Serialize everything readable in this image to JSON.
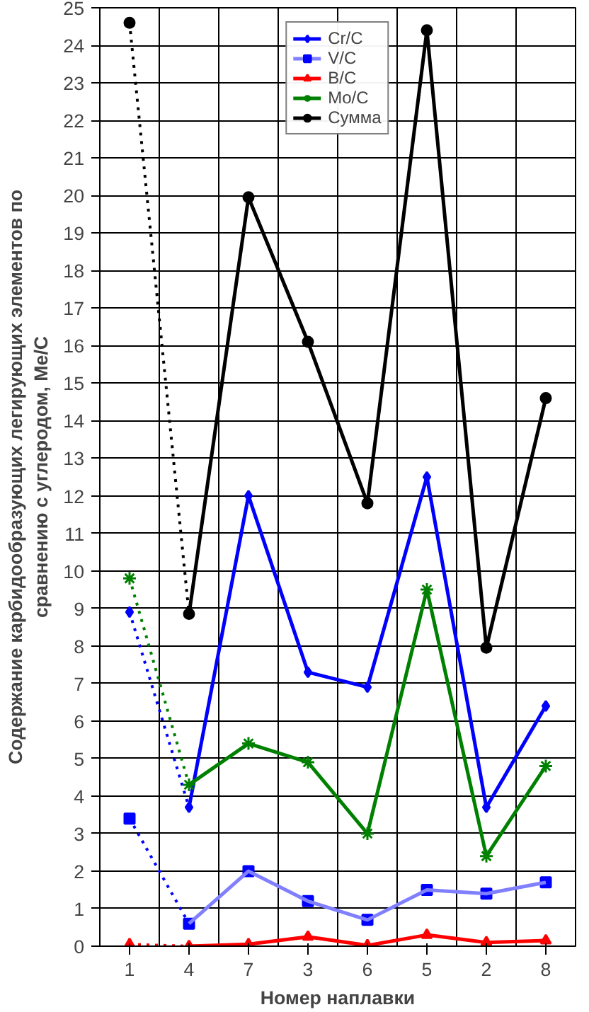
{
  "chart_data": {
    "type": "line",
    "xlabel": "Номер наплавки",
    "ylabel": "Содержание карбидообразующих легирующих элементов по\nсравнению с углеродом, Ме/С",
    "categories": [
      "1",
      "4",
      "7",
      "3",
      "6",
      "5",
      "2",
      "8"
    ],
    "ylim": [
      0,
      25
    ],
    "yticks": [
      0,
      1,
      2,
      3,
      4,
      5,
      6,
      7,
      8,
      9,
      10,
      11,
      12,
      13,
      14,
      15,
      16,
      17,
      18,
      19,
      20,
      21,
      22,
      23,
      24,
      25
    ],
    "grid": true,
    "legend": "top",
    "series": [
      {
        "name": "Cr/C",
        "type": "scatter",
        "marker": "diamond",
        "color": "#0000ff",
        "values": [
          8.9,
          3.7,
          12.0,
          7.3,
          6.9,
          12.5,
          3.7,
          6.4
        ]
      },
      {
        "type": "line",
        "line_style": "dotted",
        "color": "#0000ff",
        "x": [
          "1",
          "4"
        ],
        "values": [
          8.9,
          3.7
        ]
      },
      {
        "line_style": "solid",
        "color": "#0000ff",
        "x": [
          "4",
          "7",
          "3",
          "6",
          "5",
          "2",
          "8"
        ],
        "values": [
          3.7,
          12.0,
          7.3,
          6.9,
          12.5,
          3.7,
          6.4
        ]
      },
      {
        "name": "V/C",
        "type": "scatter",
        "marker": "square",
        "color": "#0000ff",
        "values": [
          3.4,
          0.6,
          2.0,
          1.2,
          0.7,
          1.5,
          1.4,
          1.7
        ]
      },
      {
        "type": "line",
        "line_style": "dotted",
        "color": "#0000ff",
        "x": [
          "1",
          "4"
        ],
        "values": [
          3.4,
          0.6
        ]
      },
      {
        "line_style": "solid",
        "color": "#8080ff",
        "x": [
          "4",
          "7",
          "3",
          "6",
          "5",
          "2",
          "8"
        ],
        "values": [
          0.6,
          2.0,
          1.2,
          0.7,
          1.5,
          1.4,
          1.7
        ]
      },
      {
        "name": "B/C",
        "type": "scatter",
        "marker": "triangle",
        "color": "#ff0000",
        "values": [
          0.05,
          0.0,
          0.05,
          0.25,
          0.02,
          0.3,
          0.1,
          0.15
        ]
      },
      {
        "type": "line",
        "line_style": "dotted",
        "color": "#ff0000",
        "x": [
          "1",
          "4"
        ],
        "values": [
          0.05,
          0.0
        ]
      },
      {
        "line_style": "solid",
        "color": "#ff0000",
        "x": [
          "4",
          "7",
          "3",
          "6",
          "5",
          "2",
          "8"
        ],
        "values": [
          0.0,
          0.05,
          0.25,
          0.02,
          0.3,
          0.1,
          0.15
        ]
      },
      {
        "name": "Mo/C",
        "type": "scatter",
        "marker": "cross",
        "color": "#008000",
        "values": [
          9.8,
          4.3,
          5.4,
          4.9,
          3.0,
          9.5,
          2.4,
          4.8
        ]
      },
      {
        "type": "line",
        "line_style": "dotted",
        "color": "#008000",
        "x": [
          "1",
          "4"
        ],
        "values": [
          9.8,
          4.3
        ]
      },
      {
        "line_style": "solid",
        "color": "#008000",
        "x": [
          "4",
          "7",
          "3",
          "6",
          "5",
          "2",
          "8"
        ],
        "values": [
          4.3,
          5.4,
          4.9,
          3.0,
          9.5,
          2.4,
          4.8
        ]
      },
      {
        "name": "Сумма",
        "type": "scatter",
        "marker": "circle",
        "color": "#000000",
        "values": [
          24.6,
          8.85,
          19.95,
          16.1,
          11.8,
          24.4,
          7.95,
          14.6
        ]
      },
      {
        "type": "line",
        "line_style": "dotted",
        "color": "#000000",
        "x": [
          "1",
          "4"
        ],
        "values": [
          24.6,
          8.85
        ]
      },
      {
        "line_style": "solid",
        "color": "#000000",
        "x": [
          "4",
          "7",
          "3",
          "6",
          "5",
          "2",
          "8"
        ],
        "values": [
          8.85,
          19.95,
          16.1,
          11.8,
          24.4,
          7.95,
          14.6
        ]
      }
    ]
  }
}
